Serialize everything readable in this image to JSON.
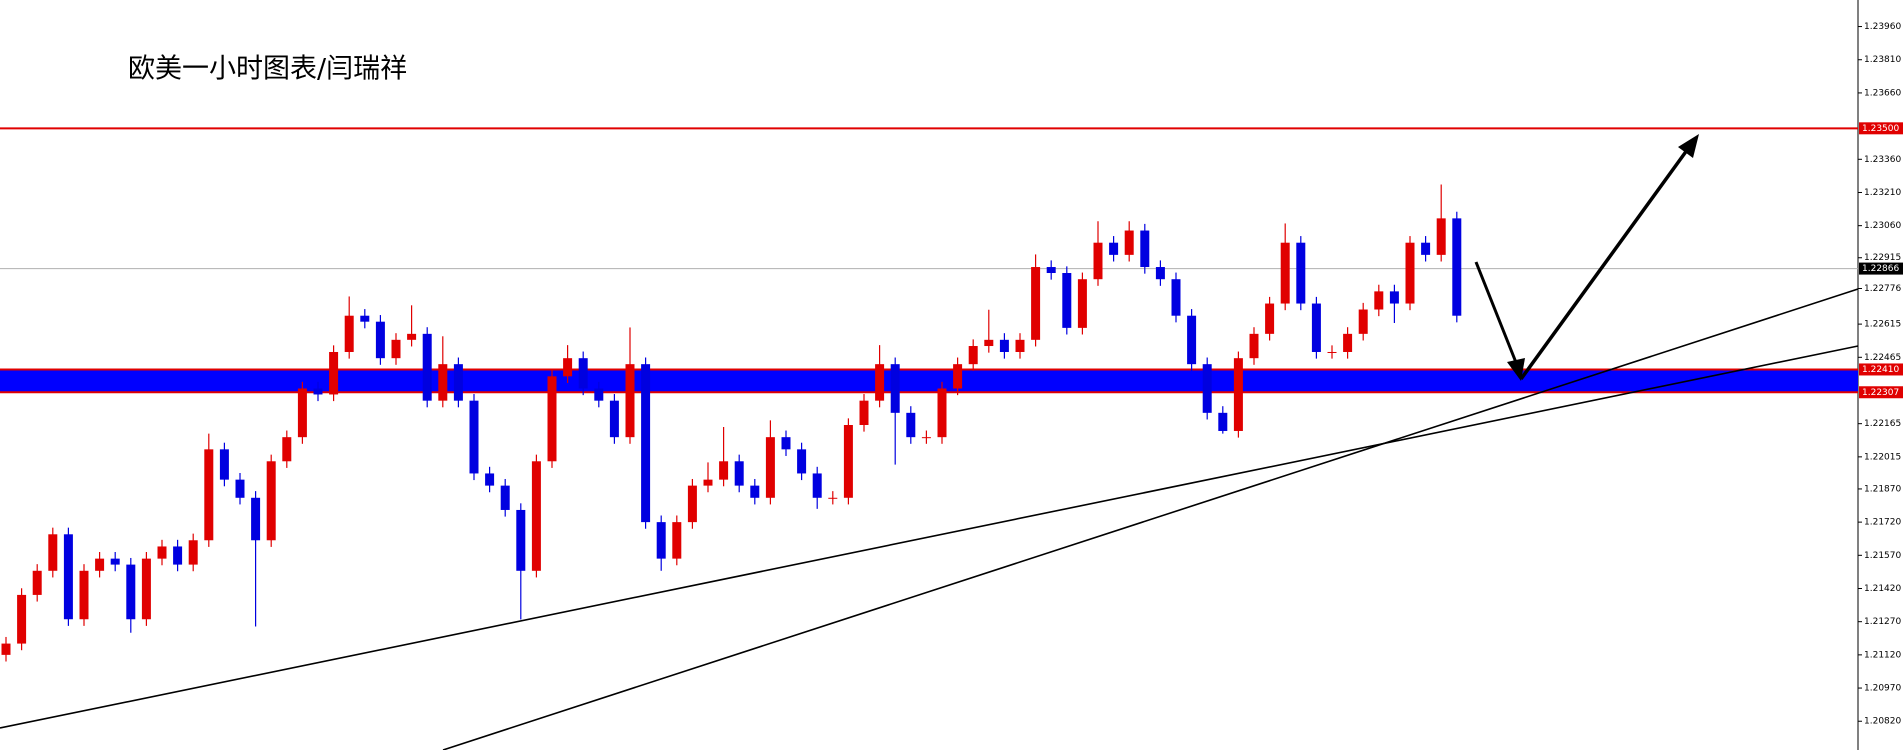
{
  "chart_data": {
    "type": "candlestick",
    "title": "欧美一小时图表/闫瑞祥",
    "ylim": [
      1.2069,
      1.2408
    ],
    "yticks": [
      {
        "value": 1.2396,
        "label": "1.23960"
      },
      {
        "value": 1.2381,
        "label": "1.23810"
      },
      {
        "value": 1.2366,
        "label": "1.23660"
      },
      {
        "value": 1.2336,
        "label": "1.23360"
      },
      {
        "value": 1.2321,
        "label": "1.23210"
      },
      {
        "value": 1.2306,
        "label": "1.23060"
      },
      {
        "value": 1.22915,
        "label": "1.22915"
      },
      {
        "value": 1.22776,
        "label": "1.22776"
      },
      {
        "value": 1.22615,
        "label": "1.22615"
      },
      {
        "value": 1.22465,
        "label": "1.22465"
      },
      {
        "value": 1.22165,
        "label": "1.22165"
      },
      {
        "value": 1.22015,
        "label": "1.22015"
      },
      {
        "value": 1.2187,
        "label": "1.21870"
      },
      {
        "value": 1.2172,
        "label": "1.21720"
      },
      {
        "value": 1.2157,
        "label": "1.21570"
      },
      {
        "value": 1.2142,
        "label": "1.21420"
      },
      {
        "value": 1.2127,
        "label": "1.21270"
      },
      {
        "value": 1.2112,
        "label": "1.21120"
      },
      {
        "value": 1.2097,
        "label": "1.20970"
      },
      {
        "value": 1.2082,
        "label": "1.20820"
      }
    ],
    "levels": [
      {
        "value": 1.235,
        "label": "1.23500",
        "color": "#e00000"
      },
      {
        "value": 1.22866,
        "label": "1.22866",
        "color": "#000000"
      },
      {
        "value": 1.2241,
        "label": "1.22410",
        "color": "#e00000"
      },
      {
        "value": 1.22307,
        "label": "1.22307",
        "color": "#e00000"
      }
    ],
    "band": {
      "from": 1.22307,
      "to": 1.2241,
      "color": "#0000ff"
    },
    "up_color": "#e00000",
    "down_color": "#0000e0",
    "open": [
      1.2112,
      1.21171,
      1.21391,
      1.215,
      1.21665,
      1.21281,
      1.215,
      1.21555,
      1.21528,
      1.21281,
      1.21555,
      1.2161,
      1.21528,
      1.21638,
      1.22049,
      1.21912,
      1.2183,
      1.21638,
      1.21995,
      1.22104,
      1.22324,
      1.22297,
      1.22489,
      1.22653,
      1.22626,
      1.22461,
      1.22544,
      1.22571,
      1.22269,
      1.22434,
      1.22269,
      1.2194,
      1.21885,
      1.21775,
      1.215,
      1.21995,
      1.22379,
      1.22461,
      1.22324,
      1.22269,
      1.22104,
      1.22434,
      1.2172,
      1.21555,
      1.2172,
      1.21885,
      1.21912,
      1.21995,
      1.21885,
      1.2183,
      1.22104,
      1.22049,
      1.2194,
      1.2183,
      1.2183,
      1.22159,
      1.22269,
      1.22434,
      1.22214,
      1.22104,
      1.22104,
      1.22324,
      1.22434,
      1.22516,
      1.22544,
      1.22489,
      1.22544,
      1.22873,
      1.22846,
      1.22598,
      1.22818,
      1.22983,
      1.22928,
      1.23038,
      1.22873,
      1.22818,
      1.22653,
      1.22434,
      1.22214,
      1.22132,
      1.22461,
      1.22571,
      1.22708,
      1.22983,
      1.22708,
      1.22489,
      1.22489,
      1.22571,
      1.22681,
      1.22763,
      1.22708,
      1.22983,
      1.22928,
      1.23093
    ],
    "high": [
      1.21201,
      1.21421,
      1.2153,
      1.21695,
      1.21695,
      1.2153,
      1.21585,
      1.21585,
      1.21558,
      1.21585,
      1.2164,
      1.2164,
      1.21668,
      1.2212,
      1.22079,
      1.21942,
      1.2186,
      1.22025,
      1.22134,
      1.22354,
      1.22354,
      1.22519,
      1.2274,
      1.22683,
      1.22656,
      1.22574,
      1.227,
      1.22601,
      1.2256,
      1.22464,
      1.22299,
      1.2197,
      1.21915,
      1.21805,
      1.22025,
      1.22409,
      1.2252,
      1.22491,
      1.22354,
      1.22299,
      1.226,
      1.22464,
      1.2175,
      1.2175,
      1.21915,
      1.2199,
      1.2215,
      1.22025,
      1.21915,
      1.2218,
      1.22134,
      1.22079,
      1.2197,
      1.2186,
      1.22189,
      1.22299,
      1.2252,
      1.22464,
      1.22244,
      1.22134,
      1.22354,
      1.22464,
      1.22546,
      1.2268,
      1.22574,
      1.22574,
      1.2293,
      1.22903,
      1.22876,
      1.22848,
      1.2308,
      1.23013,
      1.2308,
      1.23068,
      1.22903,
      1.22848,
      1.22683,
      1.22464,
      1.22244,
      1.22491,
      1.22601,
      1.22738,
      1.2307,
      1.23013,
      1.22738,
      1.22519,
      1.22601,
      1.22711,
      1.22793,
      1.22793,
      1.23013,
      1.23013,
      1.23246,
      1.23123
    ],
    "low": [
      1.2109,
      1.21141,
      1.21361,
      1.2147,
      1.21251,
      1.21251,
      1.2147,
      1.21498,
      1.2122,
      1.21251,
      1.21525,
      1.21498,
      1.21498,
      1.21608,
      1.21882,
      1.218,
      1.21248,
      1.21608,
      1.21965,
      1.22074,
      1.22267,
      1.22267,
      1.22459,
      1.22596,
      1.22431,
      1.22431,
      1.22514,
      1.22239,
      1.22239,
      1.22239,
      1.2191,
      1.21855,
      1.21745,
      1.2128,
      1.2147,
      1.21965,
      1.22349,
      1.22294,
      1.22239,
      1.22074,
      1.22074,
      1.2169,
      1.215,
      1.21525,
      1.2169,
      1.21855,
      1.21882,
      1.21855,
      1.218,
      1.218,
      1.22019,
      1.2191,
      1.2178,
      1.218,
      1.218,
      1.22129,
      1.22239,
      1.2198,
      1.22074,
      1.22074,
      1.22074,
      1.22294,
      1.22404,
      1.22486,
      1.22459,
      1.22459,
      1.22514,
      1.22816,
      1.22568,
      1.22568,
      1.22788,
      1.22898,
      1.22898,
      1.22843,
      1.22788,
      1.22623,
      1.22404,
      1.22184,
      1.2212,
      1.22102,
      1.22431,
      1.22541,
      1.22678,
      1.22678,
      1.22459,
      1.22459,
      1.22459,
      1.22541,
      1.22651,
      1.2262,
      1.22678,
      1.22898,
      1.22898,
      1.22623
    ],
    "close": [
      1.21171,
      1.21391,
      1.215,
      1.21665,
      1.21281,
      1.215,
      1.21555,
      1.21528,
      1.21281,
      1.21555,
      1.2161,
      1.21528,
      1.21638,
      1.22049,
      1.21912,
      1.2183,
      1.21638,
      1.21995,
      1.22104,
      1.22324,
      1.22297,
      1.22489,
      1.22653,
      1.22626,
      1.22461,
      1.22544,
      1.22571,
      1.22269,
      1.22434,
      1.22269,
      1.2194,
      1.21885,
      1.21775,
      1.215,
      1.21995,
      1.22379,
      1.22461,
      1.22324,
      1.22269,
      1.22104,
      1.22434,
      1.2172,
      1.21555,
      1.2172,
      1.21885,
      1.21912,
      1.21995,
      1.21885,
      1.2183,
      1.22104,
      1.22049,
      1.2194,
      1.2183,
      1.2183,
      1.22159,
      1.22269,
      1.22434,
      1.22214,
      1.22104,
      1.22104,
      1.22324,
      1.22434,
      1.22516,
      1.22544,
      1.22489,
      1.22544,
      1.22873,
      1.22846,
      1.22598,
      1.22818,
      1.22983,
      1.22928,
      1.23038,
      1.22873,
      1.22818,
      1.22653,
      1.22434,
      1.22214,
      1.22132,
      1.22461,
      1.22571,
      1.22708,
      1.22983,
      1.22708,
      1.22489,
      1.22489,
      1.22571,
      1.22681,
      1.22763,
      1.22708,
      1.22983,
      1.22928,
      1.23093,
      1.22653
    ]
  }
}
